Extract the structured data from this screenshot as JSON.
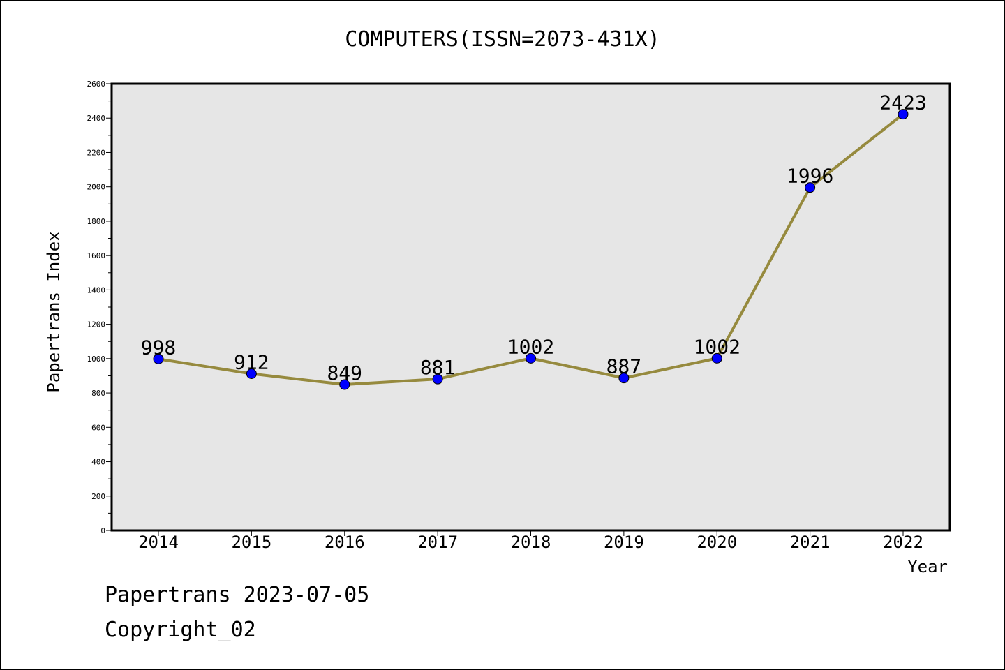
{
  "chart_data": {
    "type": "line",
    "title": "COMPUTERS(ISSN=2073-431X)",
    "xlabel": "Year",
    "ylabel": "Papertrans Index",
    "x": [
      "2014",
      "2015",
      "2016",
      "2017",
      "2018",
      "2019",
      "2020",
      "2021",
      "2022"
    ],
    "series": [
      {
        "values": [
          998,
          912,
          849,
          881,
          1002,
          887,
          1002,
          1996,
          2423
        ],
        "color": "#968A3E",
        "marker_color": "#0000FF"
      }
    ],
    "data_labels": [
      "998",
      "912",
      "849",
      "881",
      "1002",
      "887",
      "1002",
      "1996",
      "2423"
    ],
    "ylim": [
      0,
      2600
    ],
    "yticks": [
      0,
      200,
      400,
      600,
      800,
      1000,
      1200,
      1400,
      1600,
      1800,
      2000,
      2200,
      2400,
      2600
    ],
    "grid": false,
    "plot_background": "#E6E6E6"
  },
  "footer": {
    "line1": "Papertrans 2023-07-05",
    "line2": "Copyright_02"
  }
}
